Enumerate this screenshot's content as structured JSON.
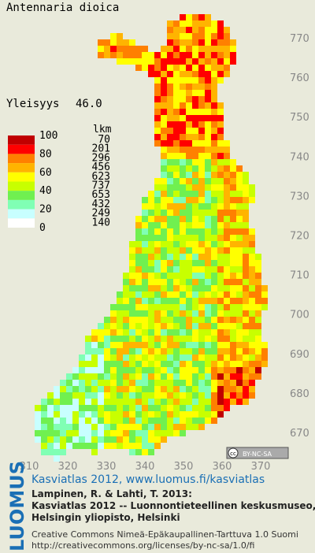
{
  "header": {
    "title": "Antennaria dioica",
    "frequency_label": "Yleisyys",
    "frequency_value": "46.0"
  },
  "legend": {
    "count_heading": "lkm",
    "scale_labels": [
      "100",
      "80",
      "60",
      "40",
      "20",
      "0"
    ],
    "classes": [
      {
        "color": "#c00000",
        "count": "70"
      },
      {
        "color": "#ff0000",
        "count": "201"
      },
      {
        "color": "#ff8000",
        "count": "296"
      },
      {
        "color": "#ffb400",
        "count": "456"
      },
      {
        "color": "#ffff00",
        "count": "623"
      },
      {
        "color": "#c8ff00",
        "count": "737"
      },
      {
        "color": "#70f050",
        "count": "653"
      },
      {
        "color": "#80ffb4",
        "count": "432"
      },
      {
        "color": "#c8ffff",
        "count": "249"
      },
      {
        "color": "#ffffff",
        "count": "140"
      }
    ]
  },
  "grid_labels": {
    "north": [
      "770",
      "760",
      "750",
      "740",
      "730",
      "720",
      "710",
      "700",
      "690",
      "680",
      "670"
    ],
    "east": [
      "310",
      "320",
      "330",
      "340",
      "350",
      "360",
      "370"
    ]
  },
  "license_badge": {
    "cc": "cc",
    "terms": "BY-NC-SA"
  },
  "footer": {
    "logo": "LUOMUS",
    "link": "Kasviatlas 2012, www.luomus.fi/kasviatlas",
    "citation": [
      "Lampinen, R. & Lahti, T. 2013:",
      "Kasviatlas 2012 -- Luonnontieteellinen keskusmuseo,",
      "Helsingin yliopisto, Helsinki"
    ],
    "license": [
      "Creative Commons Nimeä-Epäkaupallinen-Tarttuva 1.0 Suomi",
      "http://creativecommons.org/licenses/by-nc-sa/1.0/fi"
    ]
  }
}
